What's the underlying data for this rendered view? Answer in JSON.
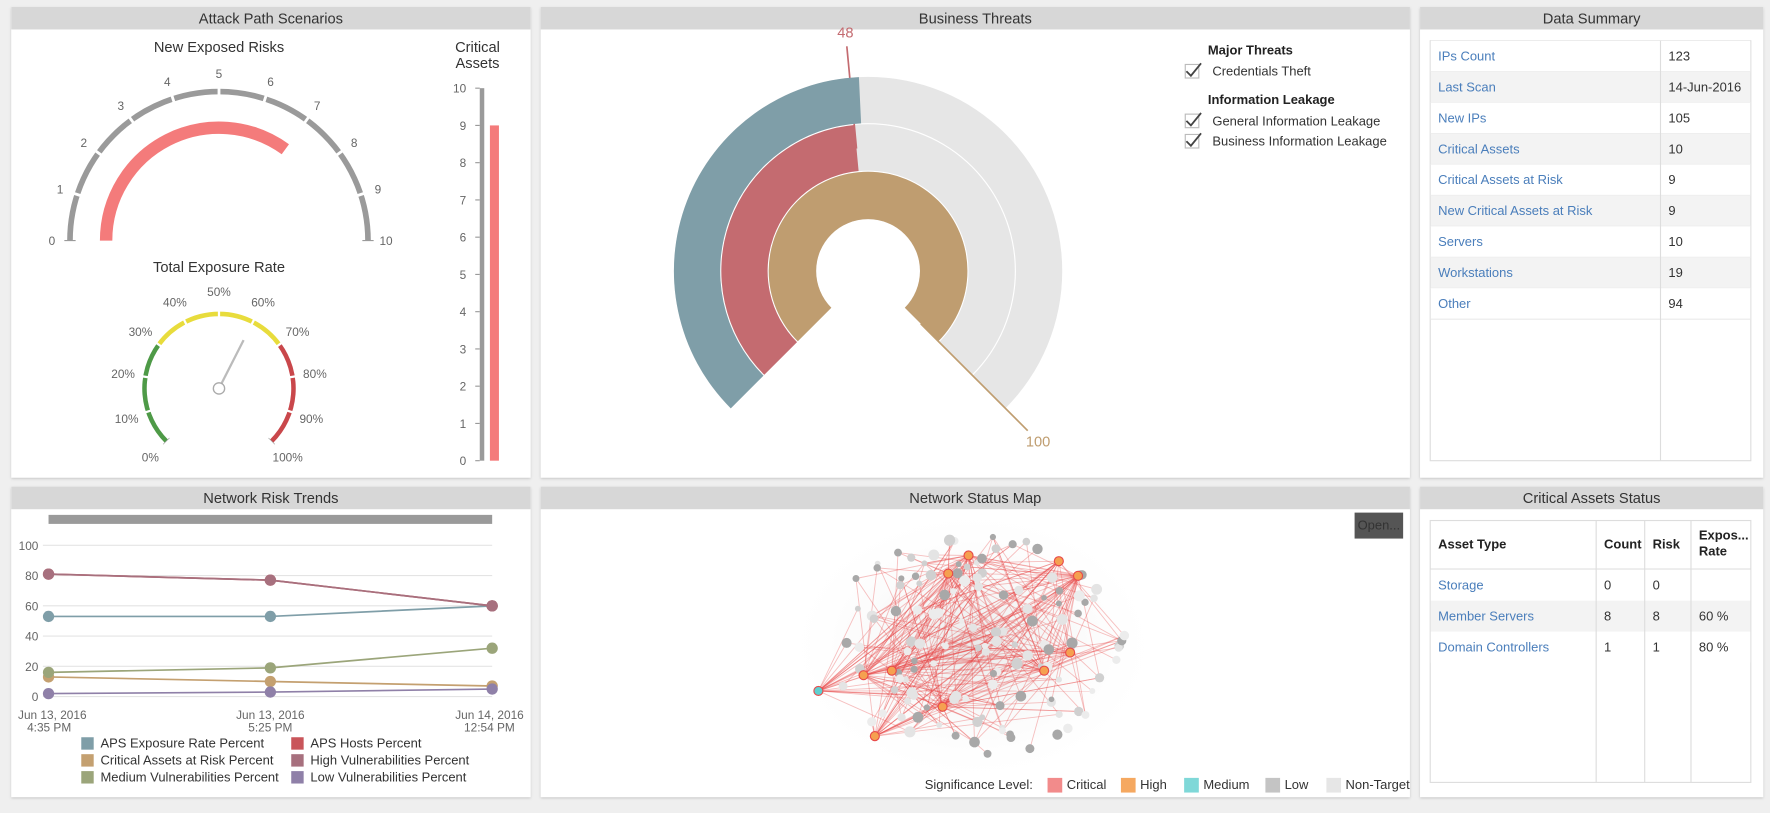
{
  "attack_path": {
    "title": "Attack Path Scenarios",
    "new_exposed_risks": {
      "title": "New Exposed Risks",
      "value": 7,
      "lim": [
        0,
        10
      ],
      "ticks": [
        0,
        1,
        2,
        3,
        4,
        5,
        6,
        7,
        8,
        9,
        10
      ],
      "color": "#f47b7b",
      "scale_color": "#9a9a9a"
    },
    "total_exposure_rate": {
      "title": "Total Exposure Rate",
      "value": 60,
      "lim": [
        0,
        100
      ],
      "ticks": [
        {
          "value": 0,
          "label": "0%"
        },
        {
          "value": 10,
          "label": "10%"
        },
        {
          "value": 20,
          "label": "20%"
        },
        {
          "value": 30,
          "label": "30%"
        },
        {
          "value": 40,
          "label": "40%"
        },
        {
          "value": 50,
          "label": "50%"
        },
        {
          "value": 60,
          "label": "60%"
        },
        {
          "value": 70,
          "label": "70%"
        },
        {
          "value": 80,
          "label": "80%"
        },
        {
          "value": 90,
          "label": "90%"
        },
        {
          "value": 100,
          "label": "100%"
        }
      ],
      "bands": [
        {
          "from": 0,
          "to": 30,
          "color": "#4e9a47"
        },
        {
          "from": 30,
          "to": 70,
          "color": "#e8dc3c"
        },
        {
          "from": 70,
          "to": 100,
          "color": "#c9474b"
        }
      ]
    },
    "critical_assets": {
      "title": [
        "Critical",
        "Assets"
      ],
      "value": 9,
      "ylim": [
        0,
        10
      ],
      "yticks": [
        0,
        1,
        2,
        3,
        4,
        5,
        6,
        7,
        8,
        9,
        10
      ],
      "color": "#f47b7b"
    }
  },
  "business_threats": {
    "title": "Business Threats",
    "lim": [
      0,
      100
    ],
    "rings": [
      {
        "value": 100,
        "color": "#bf9d70",
        "labeled": true
      },
      {
        "value": 48,
        "color": "#c46b70",
        "labeled": true
      },
      {
        "value": 49,
        "color": "#7f9ea8",
        "labeled": false
      }
    ],
    "legend": [
      {
        "heading": "Major Threats",
        "items": [
          "Credentials Theft"
        ]
      },
      {
        "heading": "Information Leakage",
        "items": [
          "General Information Leakage",
          "Business Information Leakage"
        ]
      }
    ]
  },
  "data_summary": {
    "title": "Data Summary",
    "rows": [
      [
        "IPs Count",
        123
      ],
      [
        "Last Scan",
        "14-Jun-2016"
      ],
      [
        "New IPs",
        105
      ],
      [
        "Critical Assets",
        10
      ],
      [
        "Critical Assets at Risk",
        9
      ],
      [
        "New Critical Assets at Risk",
        9
      ],
      [
        "Servers",
        10
      ],
      [
        "Workstations",
        19
      ],
      [
        "Other",
        94
      ]
    ]
  },
  "network_risk_trends": {
    "title": "Network Risk Trends",
    "type": "line",
    "categories": [
      [
        "Jun 13, 2016",
        "4:35 PM"
      ],
      [
        "Jun 13, 2016",
        "5:25 PM"
      ],
      [
        "Jun 14, 2016",
        "12:54 PM"
      ]
    ],
    "ylim": [
      0,
      100
    ],
    "yticks": [
      0,
      20,
      40,
      60,
      80,
      100
    ],
    "grid": true,
    "series": [
      {
        "name": "APS Exposure Rate Percent",
        "color": "#7f9ea8",
        "values": [
          53,
          53,
          60
        ]
      },
      {
        "name": "APS Hosts Percent",
        "color": "#c9555a",
        "values": [
          81,
          77,
          60
        ]
      },
      {
        "name": "Critical Assets at Risk Percent",
        "color": "#c4a070",
        "values": [
          13,
          10,
          7
        ]
      },
      {
        "name": "High Vulnerabilities Percent",
        "color": "#a7707e",
        "values": [
          81,
          77,
          60
        ]
      },
      {
        "name": "Medium Vulnerabilities Percent",
        "color": "#9ba57a",
        "values": [
          16,
          19,
          32
        ]
      },
      {
        "name": "Low Vulnerabilities Percent",
        "color": "#8f80a8",
        "values": [
          2,
          3,
          5
        ]
      }
    ]
  },
  "network_status_map": {
    "title": "Network Status Map",
    "button": "Open...",
    "legend_title": "Significance Level:",
    "legend": [
      {
        "name": "Critical",
        "color": "#f28b8b"
      },
      {
        "name": "High",
        "color": "#f5a860"
      },
      {
        "name": "Medium",
        "color": "#7fd8d8"
      },
      {
        "name": "Low",
        "color": "#c4c4c4"
      },
      {
        "name": "Non-Target",
        "color": "#e6e6e6"
      }
    ]
  },
  "critical_assets_status": {
    "title": "Critical Assets Status",
    "columns": [
      [
        "Asset Type"
      ],
      [
        "Count"
      ],
      [
        "Risk"
      ],
      [
        "Expos...",
        "Rate"
      ]
    ],
    "rows": [
      [
        "Storage",
        0,
        0,
        null
      ],
      [
        "Member Servers",
        8,
        8,
        "60 %"
      ],
      [
        "Domain Controllers",
        1,
        1,
        "80 %"
      ]
    ]
  }
}
